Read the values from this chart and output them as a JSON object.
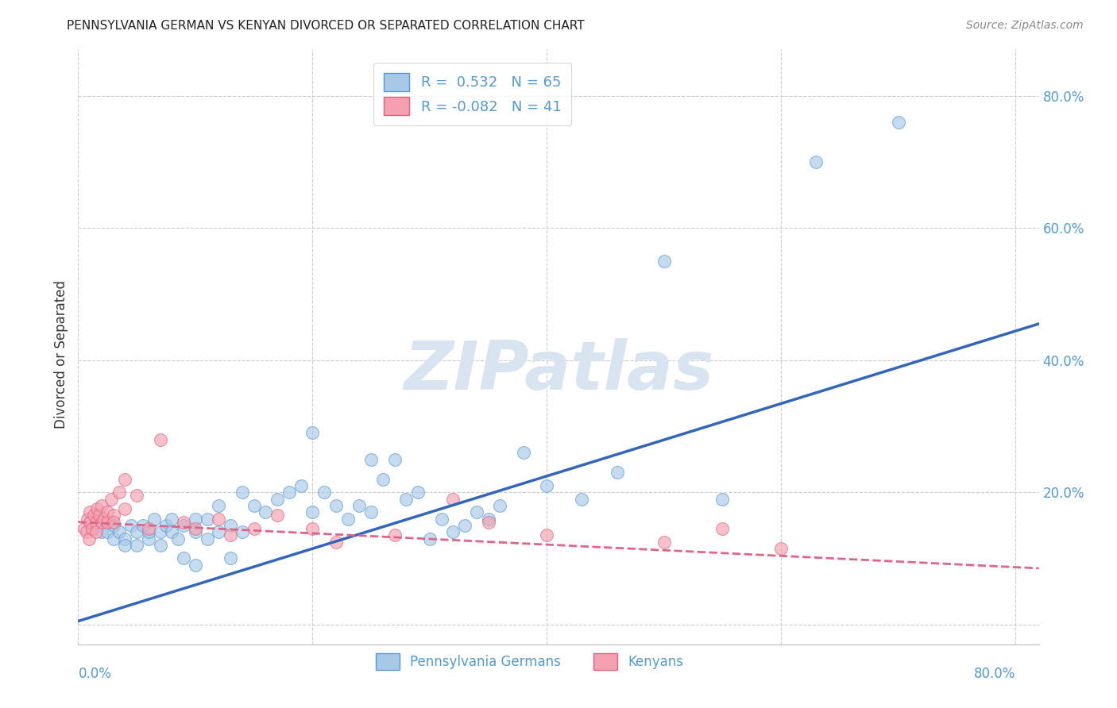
{
  "title": "PENNSYLVANIA GERMAN VS KENYAN DIVORCED OR SEPARATED CORRELATION CHART",
  "source": "Source: ZipAtlas.com",
  "ylabel": "Divorced or Separated",
  "legend_r1": "R =  0.532   N = 65",
  "legend_r2": "R = -0.082   N = 41",
  "legend_label1": "Pennsylvania Germans",
  "legend_label2": "Kenyans",
  "color_blue_fill": "#a8c8e8",
  "color_blue_edge": "#5599cc",
  "color_pink_fill": "#f4a0b0",
  "color_pink_edge": "#e06080",
  "color_line_blue": "#3366bb",
  "color_line_pink": "#dd6688",
  "color_axis_text": "#5599cc",
  "color_grid": "#cccccc",
  "color_watermark": "#d8e4f0",
  "background_color": "#ffffff",
  "xlim": [
    0.0,
    0.82
  ],
  "ylim": [
    -0.03,
    0.87
  ],
  "ytick_vals": [
    0.0,
    0.2,
    0.4,
    0.6,
    0.8
  ],
  "ytick_labels": [
    "",
    "20.0%",
    "40.0%",
    "60.0%",
    "80.0%"
  ],
  "xtick_vals": [
    0.0,
    0.2,
    0.4,
    0.6,
    0.8
  ],
  "xtick_left_label": "0.0%",
  "xtick_right_label": "80.0%",
  "blue_line_x": [
    0.0,
    0.82
  ],
  "blue_line_y": [
    0.005,
    0.455
  ],
  "pink_line_x": [
    0.0,
    0.82
  ],
  "pink_line_y": [
    0.155,
    0.085
  ],
  "blue_x": [
    0.02,
    0.025,
    0.03,
    0.03,
    0.035,
    0.04,
    0.04,
    0.045,
    0.05,
    0.05,
    0.055,
    0.06,
    0.06,
    0.065,
    0.07,
    0.07,
    0.075,
    0.08,
    0.08,
    0.085,
    0.09,
    0.09,
    0.1,
    0.1,
    0.1,
    0.11,
    0.11,
    0.12,
    0.12,
    0.13,
    0.13,
    0.14,
    0.14,
    0.15,
    0.16,
    0.17,
    0.18,
    0.19,
    0.2,
    0.2,
    0.21,
    0.22,
    0.23,
    0.24,
    0.25,
    0.25,
    0.26,
    0.27,
    0.28,
    0.29,
    0.3,
    0.31,
    0.32,
    0.33,
    0.34,
    0.35,
    0.36,
    0.38,
    0.4,
    0.43,
    0.46,
    0.5,
    0.55,
    0.63,
    0.7
  ],
  "blue_y": [
    0.14,
    0.14,
    0.13,
    0.15,
    0.14,
    0.13,
    0.12,
    0.15,
    0.14,
    0.12,
    0.15,
    0.13,
    0.14,
    0.16,
    0.14,
    0.12,
    0.15,
    0.14,
    0.16,
    0.13,
    0.15,
    0.1,
    0.16,
    0.14,
    0.09,
    0.16,
    0.13,
    0.18,
    0.14,
    0.15,
    0.1,
    0.2,
    0.14,
    0.18,
    0.17,
    0.19,
    0.2,
    0.21,
    0.17,
    0.29,
    0.2,
    0.18,
    0.16,
    0.18,
    0.17,
    0.25,
    0.22,
    0.25,
    0.19,
    0.2,
    0.13,
    0.16,
    0.14,
    0.15,
    0.17,
    0.16,
    0.18,
    0.26,
    0.21,
    0.19,
    0.23,
    0.55,
    0.19,
    0.7,
    0.76
  ],
  "pink_x": [
    0.005,
    0.007,
    0.008,
    0.009,
    0.01,
    0.01,
    0.012,
    0.013,
    0.015,
    0.015,
    0.016,
    0.018,
    0.02,
    0.02,
    0.022,
    0.025,
    0.025,
    0.028,
    0.03,
    0.03,
    0.035,
    0.04,
    0.04,
    0.05,
    0.06,
    0.07,
    0.09,
    0.1,
    0.12,
    0.13,
    0.15,
    0.17,
    0.2,
    0.22,
    0.27,
    0.32,
    0.35,
    0.4,
    0.5,
    0.55,
    0.6
  ],
  "pink_y": [
    0.145,
    0.14,
    0.16,
    0.13,
    0.17,
    0.155,
    0.145,
    0.165,
    0.155,
    0.14,
    0.175,
    0.165,
    0.18,
    0.155,
    0.16,
    0.17,
    0.155,
    0.19,
    0.165,
    0.155,
    0.2,
    0.22,
    0.175,
    0.195,
    0.145,
    0.28,
    0.155,
    0.145,
    0.16,
    0.135,
    0.145,
    0.165,
    0.145,
    0.125,
    0.135,
    0.19,
    0.155,
    0.135,
    0.125,
    0.145,
    0.115
  ]
}
